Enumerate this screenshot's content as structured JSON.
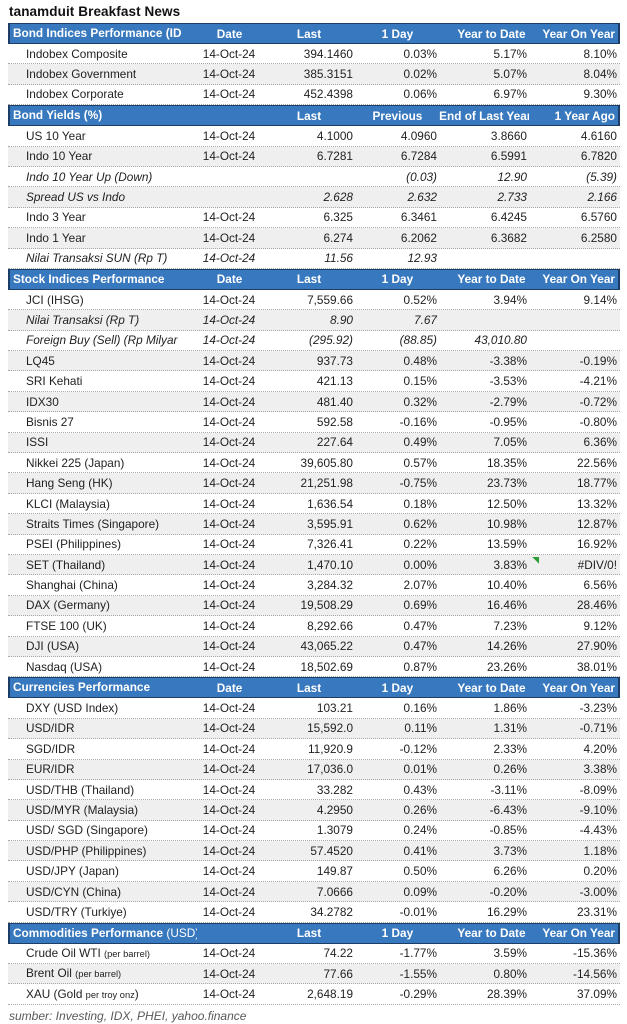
{
  "title": "tanamduit Breakfast News",
  "footer": "sumber: Investing, IDX, PHEI, yahoo.finance",
  "colors": {
    "header_bg": "#3878BE",
    "header_border": "#1C3E66",
    "stripe": "#EFEFEF",
    "row_border": "#A8A8A8",
    "error_marker_green": "#2E9D32",
    "footer_text": "#595959"
  },
  "sections": [
    {
      "id": "bond-indices",
      "label": "Bond Indices Performance (ID",
      "label_suffix": "",
      "columns": [
        "Date",
        "Last",
        "1 Day",
        "Year to Date",
        "Year On Year"
      ],
      "rows": [
        {
          "name": "Indobex Composite",
          "date": "14-Oct-24",
          "last": "394.1460",
          "c1": "0.03%",
          "c2": "5.17%",
          "c3": "8.10%"
        },
        {
          "name": "Indobex Government",
          "date": "14-Oct-24",
          "last": "385.3151",
          "c1": "0.02%",
          "c2": "5.07%",
          "c3": "8.04%"
        },
        {
          "name": "Indobex Corporate",
          "date": "14-Oct-24",
          "last": "452.4398",
          "c1": "0.06%",
          "c2": "6.97%",
          "c3": "9.30%"
        }
      ]
    },
    {
      "id": "bond-yields",
      "label": "Bond Yields (%)",
      "label_suffix": "",
      "columns": [
        "",
        "Last",
        "Previous",
        "End of Last Year",
        "1 Year Ago"
      ],
      "rows": [
        {
          "name": "US 10 Year",
          "date": "14-Oct-24",
          "last": "4.1000",
          "c1": "4.0960",
          "c2": "3.8660",
          "c3": "4.6160"
        },
        {
          "name": "Indo 10 Year",
          "date": "14-Oct-24",
          "last": "6.7281",
          "c1": "6.7284",
          "c2": "6.5991",
          "c3": "6.7820"
        },
        {
          "name": "Indo 10 Year Up (Down)",
          "date": "",
          "last": "",
          "c1": "(0.03)",
          "c2": "12.90",
          "c3": "(5.39)",
          "italic": true
        },
        {
          "name": "Spread US vs Indo",
          "date": "",
          "last": "2.628",
          "c1": "2.632",
          "c2": "2.733",
          "c3": "2.166",
          "italic": true
        },
        {
          "name": "Indo 3 Year",
          "date": "14-Oct-24",
          "last": "6.325",
          "c1": "6.3461",
          "c2": "6.4245",
          "c3": "6.5760"
        },
        {
          "name": "Indo 1 Year",
          "date": "14-Oct-24",
          "last": "6.274",
          "c1": "6.2062",
          "c2": "6.3682",
          "c3": "6.2580"
        },
        {
          "name": "Nilai Transaksi SUN (Rp T)",
          "date": "14-Oct-24",
          "last": "11.56",
          "c1": "12.93",
          "c2": "",
          "c3": "",
          "italic": true
        }
      ]
    },
    {
      "id": "stock-indices",
      "label": "Stock Indices Performance",
      "label_suffix": "",
      "columns": [
        "Date",
        "Last",
        "1 Day",
        "Year to Date",
        "Year On Year"
      ],
      "rows": [
        {
          "name": "JCI (IHSG)",
          "date": "14-Oct-24",
          "last": "7,559.66",
          "c1": "0.52%",
          "c2": "3.94%",
          "c3": "9.14%"
        },
        {
          "name": "Nilai Transaksi (Rp T)",
          "date": "14-Oct-24",
          "last": "8.90",
          "c1": "7.67",
          "c2": "",
          "c3": "",
          "italic": true
        },
        {
          "name": "Foreign Buy (Sell) (Rp Milyar",
          "date": "14-Oct-24",
          "last": "(295.92)",
          "c1": "(88.85)",
          "c2": "43,010.80",
          "c3": "",
          "italic": true
        },
        {
          "name": "LQ45",
          "date": "14-Oct-24",
          "last": "937.73",
          "c1": "0.48%",
          "c2": "-3.38%",
          "c3": "-0.19%"
        },
        {
          "name": "SRI Kehati",
          "date": "14-Oct-24",
          "last": "421.13",
          "c1": "0.15%",
          "c2": "-3.53%",
          "c3": "-4.21%"
        },
        {
          "name": "IDX30",
          "date": "14-Oct-24",
          "last": "481.40",
          "c1": "0.32%",
          "c2": "-2.79%",
          "c3": "-0.72%"
        },
        {
          "name": "Bisnis 27",
          "date": "14-Oct-24",
          "last": "592.58",
          "c1": "-0.16%",
          "c2": "-0.95%",
          "c3": "-0.80%"
        },
        {
          "name": "ISSI",
          "date": "14-Oct-24",
          "last": "227.64",
          "c1": "0.49%",
          "c2": "7.05%",
          "c3": "6.36%"
        },
        {
          "name": "Nikkei 225 (Japan)",
          "date": "14-Oct-24",
          "last": "39,605.80",
          "c1": "0.57%",
          "c2": "18.35%",
          "c3": "22.56%"
        },
        {
          "name": "Hang Seng (HK)",
          "date": "14-Oct-24",
          "last": "21,251.98",
          "c1": "-0.75%",
          "c2": "23.73%",
          "c3": "18.77%"
        },
        {
          "name": "KLCI (Malaysia)",
          "date": "14-Oct-24",
          "last": "1,636.54",
          "c1": "0.18%",
          "c2": "12.50%",
          "c3": "13.32%"
        },
        {
          "name": "Straits Times (Singapore)",
          "date": "14-Oct-24",
          "last": "3,595.91",
          "c1": "0.62%",
          "c2": "10.98%",
          "c3": "12.87%"
        },
        {
          "name": "PSEI (Philippines)",
          "date": "14-Oct-24",
          "last": "7,326.41",
          "c1": "0.22%",
          "c2": "13.59%",
          "c3": "16.92%"
        },
        {
          "name": "SET (Thailand)",
          "date": "14-Oct-24",
          "last": "1,470.10",
          "c1": "0.00%",
          "c2": "3.83%",
          "c3": "#DIV/0!",
          "error_marker": true
        },
        {
          "name": "Shanghai (China)",
          "date": "14-Oct-24",
          "last": "3,284.32",
          "c1": "2.07%",
          "c2": "10.40%",
          "c3": "6.56%"
        },
        {
          "name": "DAX (Germany)",
          "date": "14-Oct-24",
          "last": "19,508.29",
          "c1": "0.69%",
          "c2": "16.46%",
          "c3": "28.46%"
        },
        {
          "name": "FTSE 100 (UK)",
          "date": "14-Oct-24",
          "last": "8,292.66",
          "c1": "0.47%",
          "c2": "7.23%",
          "c3": "9.12%"
        },
        {
          "name": "DJI (USA)",
          "date": "14-Oct-24",
          "last": "43,065.22",
          "c1": "0.47%",
          "c2": "14.26%",
          "c3": "27.90%"
        },
        {
          "name": "Nasdaq (USA)",
          "date": "14-Oct-24",
          "last": "18,502.69",
          "c1": "0.87%",
          "c2": "23.26%",
          "c3": "38.01%"
        }
      ]
    },
    {
      "id": "currencies",
      "label": "Currencies Performance",
      "label_suffix": "",
      "columns": [
        "Date",
        "Last",
        "1 Day",
        "Year to Date",
        "Year On Year"
      ],
      "rows": [
        {
          "name": "DXY (USD Index)",
          "date": "14-Oct-24",
          "last": "103.21",
          "c1": "0.16%",
          "c2": "1.86%",
          "c3": "-3.23%"
        },
        {
          "name": "USD/IDR",
          "date": "14-Oct-24",
          "last": "15,592.0",
          "c1": "0.11%",
          "c2": "1.31%",
          "c3": "-0.71%"
        },
        {
          "name": "SGD/IDR",
          "date": "14-Oct-24",
          "last": "11,920.9",
          "c1": "-0.12%",
          "c2": "2.33%",
          "c3": "4.20%"
        },
        {
          "name": "EUR/IDR",
          "date": "14-Oct-24",
          "last": "17,036.0",
          "c1": "0.01%",
          "c2": "0.26%",
          "c3": "3.38%"
        },
        {
          "name": "USD/THB (Thailand)",
          "date": "14-Oct-24",
          "last": "33.282",
          "c1": "0.43%",
          "c2": "-3.11%",
          "c3": "-8.09%"
        },
        {
          "name": "USD/MYR (Malaysia)",
          "date": "14-Oct-24",
          "last": "4.2950",
          "c1": "0.26%",
          "c2": "-6.43%",
          "c3": "-9.10%"
        },
        {
          "name": "USD/ SGD (Singapore)",
          "date": "14-Oct-24",
          "last": "1.3079",
          "c1": "0.24%",
          "c2": "-0.85%",
          "c3": "-4.43%"
        },
        {
          "name": "USD/PHP (Philippines)",
          "date": "14-Oct-24",
          "last": "57.4520",
          "c1": "0.41%",
          "c2": "3.73%",
          "c3": "1.18%"
        },
        {
          "name": "USD/JPY (Japan)",
          "date": "14-Oct-24",
          "last": "149.87",
          "c1": "0.50%",
          "c2": "6.26%",
          "c3": "0.20%"
        },
        {
          "name": "USD/CYN (China)",
          "date": "14-Oct-24",
          "last": "7.0666",
          "c1": "0.09%",
          "c2": "-0.20%",
          "c3": "-3.00%"
        },
        {
          "name": "USD/TRY (Turkiye)",
          "date": "14-Oct-24",
          "last": "34.2782",
          "c1": "-0.01%",
          "c2": "16.29%",
          "c3": "23.31%"
        }
      ]
    },
    {
      "id": "commodities",
      "label": "Commodities Performance ",
      "label_suffix": "(USD)",
      "columns": [
        "",
        "Last",
        "1 Day",
        "Year to Date",
        "Year On Year"
      ],
      "rows": [
        {
          "name": "Crude Oil WTI ",
          "name_small": "(per barrel)",
          "name_tail": "",
          "date": "14-Oct-24",
          "last": "74.22",
          "c1": "-1.77%",
          "c2": "3.59%",
          "c3": "-15.36%"
        },
        {
          "name": "Brent Oil ",
          "name_small": "(per barrel)",
          "name_tail": "",
          "date": "14-Oct-24",
          "last": "77.66",
          "c1": "-1.55%",
          "c2": "0.80%",
          "c3": "-14.56%"
        },
        {
          "name": "XAU (Gold ",
          "name_small": "per troy onz",
          "name_tail": ")",
          "date": "14-Oct-24",
          "last": "2,648.19",
          "c1": "-0.29%",
          "c2": "28.39%",
          "c3": "37.09%"
        }
      ]
    }
  ]
}
